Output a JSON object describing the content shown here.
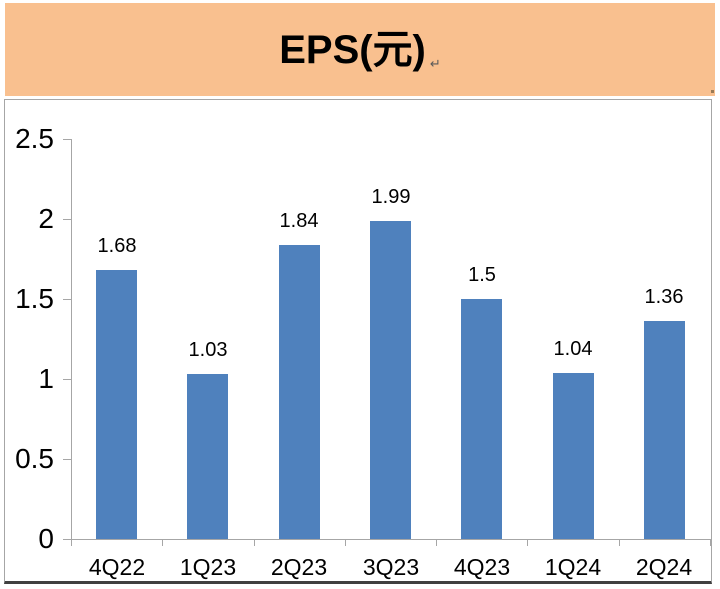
{
  "title_banner": {
    "text": "EPS(元)",
    "mark": "↵"
  },
  "chart_data": {
    "type": "bar",
    "title": "EPS(元)",
    "categories": [
      "4Q22",
      "1Q23",
      "2Q23",
      "3Q23",
      "4Q23",
      "1Q24",
      "2Q24"
    ],
    "values": [
      1.68,
      1.03,
      1.84,
      1.99,
      1.5,
      1.04,
      1.36
    ],
    "value_labels": [
      "1.68",
      "1.03",
      "1.84",
      "1.99",
      "1.5",
      "1.04",
      "1.36"
    ],
    "xlabel": "",
    "ylabel": "",
    "ylim": [
      0,
      2.5
    ],
    "y_ticks": [
      0,
      0.5,
      1,
      1.5,
      2,
      2.5
    ],
    "y_tick_labels": [
      "0",
      "0.5",
      "1",
      "1.5",
      "2",
      "2.5"
    ],
    "grid": false,
    "legend": "none",
    "colors": {
      "bar": "#4F81BD",
      "banner_bg": "#F9C08F",
      "axis": "#A6A6A6",
      "frame_border": "#A6A6A6",
      "frame_bottom_border": "#404040",
      "text": "#000000"
    }
  }
}
